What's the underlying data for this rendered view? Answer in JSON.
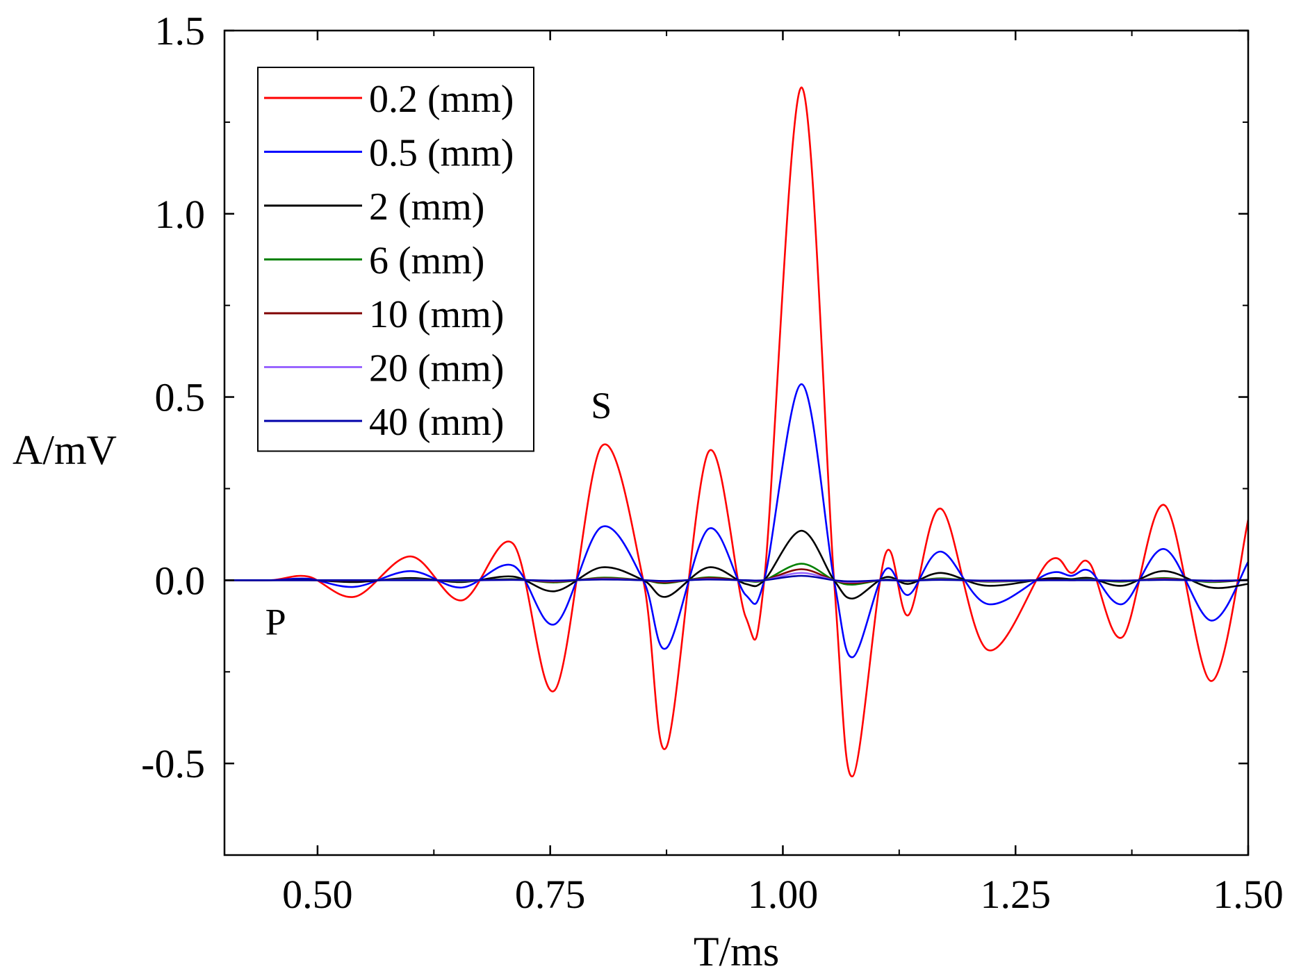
{
  "chart_data": {
    "type": "line",
    "xlabel": "T/ms",
    "ylabel": "A/mV",
    "xlim": [
      0.4,
      1.5
    ],
    "ylim": [
      -0.75,
      1.5
    ],
    "xticks": [
      0.5,
      0.75,
      1.0,
      1.25,
      1.5
    ],
    "xtick_labels": [
      "0.50",
      "0.75",
      "1.00",
      "1.25",
      "1.50"
    ],
    "yticks": [
      -0.5,
      0.0,
      0.5,
      1.0,
      1.5
    ],
    "ytick_labels": [
      "-0.5",
      "0.0",
      "0.5",
      "1.0",
      "1.5"
    ],
    "legend_position": "top-left",
    "annotations": [
      {
        "text": "S",
        "x": 0.805,
        "y": 0.48
      },
      {
        "text": "P",
        "x": 0.455,
        "y": -0.11
      }
    ],
    "x": [
      0.4,
      0.45,
      0.49,
      0.54,
      0.6,
      0.655,
      0.71,
      0.755,
      0.805,
      0.85,
      0.875,
      0.92,
      0.96,
      0.98,
      1.02,
      1.055,
      1.075,
      1.11,
      1.135,
      1.17,
      1.22,
      1.285,
      1.31,
      1.33,
      1.365,
      1.41,
      1.46,
      1.5
    ],
    "series": [
      {
        "name": "0.2 (mm)",
        "color": "#ff0000",
        "values": [
          0,
          0,
          0.01,
          -0.045,
          0.065,
          -0.055,
          0.1,
          -0.3,
          0.365,
          0,
          -0.455,
          0.35,
          -0.1,
          0,
          1.345,
          0,
          -0.535,
          0.07,
          -0.095,
          0.195,
          -0.19,
          0.05,
          0.02,
          0.045,
          -0.155,
          0.205,
          -0.275,
          0.165
        ]
      },
      {
        "name": "0.5 (mm)",
        "color": "#0000ff",
        "values": [
          0,
          0,
          0.004,
          -0.018,
          0.025,
          -0.02,
          0.04,
          -0.12,
          0.145,
          0,
          -0.185,
          0.14,
          -0.04,
          0,
          0.535,
          0,
          -0.21,
          0.028,
          -0.04,
          0.078,
          -0.065,
          0.018,
          0.012,
          0.025,
          -0.065,
          0.085,
          -0.11,
          0.05
        ]
      },
      {
        "name": "2 (mm)",
        "color": "#000000",
        "values": [
          0,
          0,
          0.001,
          -0.005,
          0.006,
          -0.005,
          0.01,
          -0.03,
          0.035,
          0,
          -0.045,
          0.035,
          -0.01,
          0,
          0.135,
          0,
          -0.05,
          0.008,
          -0.01,
          0.02,
          -0.015,
          0.005,
          0.003,
          0.006,
          -0.015,
          0.025,
          -0.02,
          -0.01
        ]
      },
      {
        "name": "6 (mm)",
        "color": "#008000",
        "values": [
          0,
          0,
          0,
          -0.001,
          0.002,
          -0.002,
          0.003,
          -0.006,
          0.007,
          0,
          -0.008,
          0.008,
          -0.002,
          0,
          0.045,
          0,
          -0.012,
          0.002,
          -0.003,
          0.005,
          -0.004,
          0.001,
          0.001,
          0.002,
          -0.004,
          0.006,
          -0.005,
          0.002
        ]
      },
      {
        "name": "10 (mm)",
        "color": "#800000",
        "values": [
          0,
          0,
          0,
          -0.001,
          0.001,
          -0.001,
          0.002,
          -0.004,
          0.005,
          0,
          -0.006,
          0.006,
          -0.001,
          0,
          0.03,
          0,
          -0.008,
          0.001,
          -0.002,
          0.003,
          -0.003,
          0.001,
          0,
          0.001,
          -0.002,
          0.004,
          -0.003,
          0.001
        ]
      },
      {
        "name": "20 (mm)",
        "color": "#9966ff",
        "values": [
          0,
          0,
          0,
          0,
          0.001,
          -0.001,
          0.001,
          -0.002,
          0.003,
          0,
          -0.003,
          0.003,
          -0.001,
          0,
          0.02,
          0,
          -0.005,
          0.001,
          -0.001,
          0.002,
          -0.002,
          0,
          0,
          0.001,
          -0.001,
          0.002,
          -0.002,
          0.001
        ]
      },
      {
        "name": "40 (mm)",
        "color": "#0000aa",
        "values": [
          0,
          0,
          0,
          0,
          0,
          0,
          0.001,
          -0.001,
          0.002,
          0,
          -0.002,
          0.002,
          0,
          0,
          0.012,
          0,
          -0.003,
          0,
          -0.001,
          0.001,
          -0.001,
          0,
          0,
          0,
          -0.001,
          0.001,
          -0.001,
          0
        ]
      }
    ]
  }
}
